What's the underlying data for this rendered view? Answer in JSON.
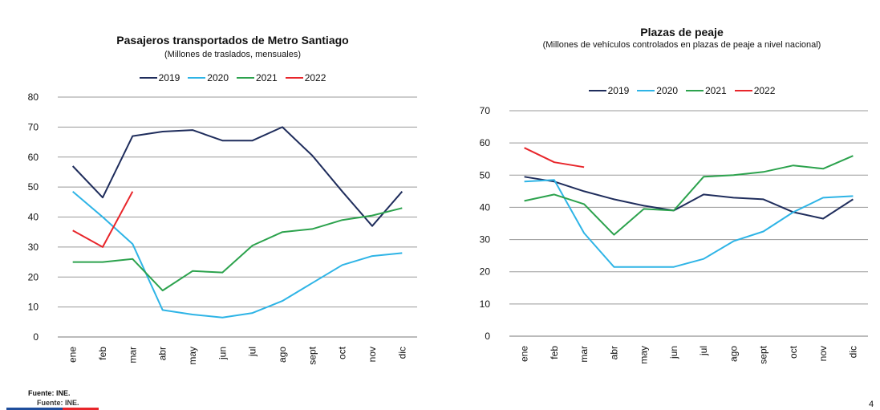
{
  "chart_data": [
    {
      "type": "line",
      "title": "Pasajeros transportados de Metro Santiago",
      "subtitle": "(Millones de traslados, mensuales)",
      "categories": [
        "ene",
        "feb",
        "mar",
        "abr",
        "may",
        "jun",
        "jul",
        "ago",
        "sept",
        "oct",
        "nov",
        "dic"
      ],
      "series": [
        {
          "name": "2019",
          "color": "#1f2d5c",
          "values": [
            57,
            46.5,
            67,
            68.5,
            69,
            65.5,
            65.5,
            70,
            60.5,
            48.5,
            37,
            48.5
          ]
        },
        {
          "name": "2020",
          "color": "#2eb4e6",
          "values": [
            48.5,
            40,
            31,
            9,
            7.5,
            6.5,
            8,
            12,
            18,
            24,
            27,
            28
          ]
        },
        {
          "name": "2021",
          "color": "#2ca24d",
          "values": [
            25,
            25,
            26,
            15.5,
            22,
            21.5,
            30.5,
            35,
            36,
            39,
            40.5,
            43
          ]
        },
        {
          "name": "2022",
          "color": "#e8262b",
          "values": [
            35.5,
            30,
            48.5,
            null,
            null,
            null,
            null,
            null,
            null,
            null,
            null,
            null
          ]
        }
      ],
      "ylim": [
        0,
        80
      ],
      "yticks": [
        0,
        10,
        20,
        30,
        40,
        50,
        60,
        70,
        80
      ],
      "grid": true,
      "legend": "top"
    },
    {
      "type": "line",
      "title": "Plazas de peaje",
      "subtitle": "(Millones de vehículos controlados en plazas de peaje a nivel nacional)",
      "categories": [
        "ene",
        "feb",
        "mar",
        "abr",
        "may",
        "jun",
        "jul",
        "ago",
        "sept",
        "oct",
        "nov",
        "dic"
      ],
      "series": [
        {
          "name": "2019",
          "color": "#1f2d5c",
          "values": [
            49.5,
            48,
            45,
            42.5,
            40.5,
            39,
            44,
            43,
            42.5,
            38.5,
            36.5,
            42.5
          ]
        },
        {
          "name": "2020",
          "color": "#2eb4e6",
          "values": [
            48,
            48.5,
            32,
            21.5,
            21.5,
            21.5,
            24,
            29.5,
            32.5,
            38.5,
            43,
            43.5
          ]
        },
        {
          "name": "2021",
          "color": "#2ca24d",
          "values": [
            42,
            44,
            41,
            31.5,
            39.5,
            39,
            49.5,
            50,
            51,
            53,
            52,
            56
          ]
        },
        {
          "name": "2022",
          "color": "#e8262b",
          "values": [
            58.5,
            54,
            52.5,
            null,
            null,
            null,
            null,
            null,
            null,
            null,
            null,
            null
          ]
        }
      ],
      "ylim": [
        0,
        70
      ],
      "yticks": [
        0,
        10,
        20,
        30,
        40,
        50,
        60,
        70
      ],
      "grid": true,
      "legend": "top"
    }
  ],
  "footer": {
    "source": "Fuente: INE.",
    "source_repeat": "Fuente: INE.",
    "page": 4
  }
}
